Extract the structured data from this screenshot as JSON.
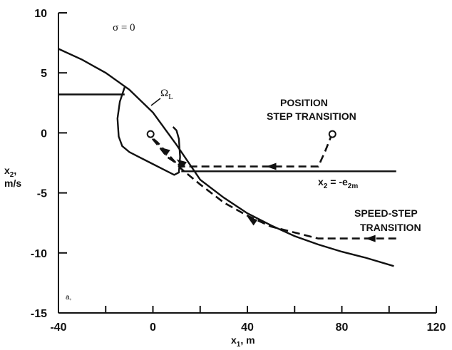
{
  "chart_data": {
    "type": "line",
    "xlabel": "x",
    "xlabel_sub": "1",
    "xlabel_unit": ", m",
    "ylabel_line1": "x",
    "ylabel_sub": "2",
    "ylabel_line1_tail": ",",
    "ylabel_line2": "m/s",
    "xlim": [
      -40,
      120
    ],
    "ylim": [
      -15,
      10
    ],
    "x_ticks": [
      -40,
      -20,
      0,
      20,
      40,
      60,
      80,
      100,
      120
    ],
    "x_tick_labels": [
      "-40",
      "",
      "0",
      "",
      "40",
      "",
      "80",
      "",
      "120"
    ],
    "y_ticks": [
      -15,
      -10,
      -5,
      0,
      5,
      10
    ],
    "y_tick_labels": [
      "-15",
      "-10",
      "-5",
      "0",
      "5",
      "10"
    ],
    "series": [
      {
        "key": "sigma_zero",
        "style": "solid",
        "x": [
          -40,
          -30,
          -20,
          -10,
          0,
          10,
          20,
          30,
          40,
          50,
          60,
          70,
          80,
          90,
          102
        ],
        "y": [
          7.0,
          6.1,
          5.0,
          3.6,
          1.7,
          -1.0,
          -3.9,
          -5.4,
          -6.7,
          -7.7,
          -8.6,
          -9.3,
          -9.9,
          -10.4,
          -11.1
        ]
      },
      {
        "key": "omega_L_boundary",
        "style": "solid",
        "x": [
          -12,
          -14,
          -15,
          -14.5,
          -13,
          -10,
          -6,
          -1,
          4,
          9,
          11,
          11.5,
          11,
          10,
          8.5
        ],
        "y": [
          3.8,
          2.6,
          1.2,
          -0.3,
          -1.1,
          -1.6,
          -2.0,
          -2.5,
          -3.0,
          -3.5,
          -3.3,
          -2.0,
          -0.5,
          0.2,
          0.5
        ]
      },
      {
        "key": "initial_plateau",
        "style": "solid",
        "x": [
          -40,
          -12
        ],
        "y": [
          3.2,
          3.2
        ]
      },
      {
        "key": "x2_equals_minus_e2m",
        "style": "solid",
        "x": [
          12,
          103
        ],
        "y": [
          -3.2,
          -3.2
        ]
      },
      {
        "key": "position_step_transition",
        "style": "dashed",
        "x": [
          76,
          73,
          70,
          40,
          12,
          6,
          2,
          -1
        ],
        "y": [
          0.0,
          -1.5,
          -2.8,
          -2.8,
          -2.8,
          -2.0,
          -1.0,
          -0.3
        ]
      },
      {
        "key": "speed_step_transition",
        "style": "dashed",
        "x": [
          103,
          70,
          50,
          40,
          30,
          20,
          12,
          6,
          2,
          -1
        ],
        "y": [
          -8.8,
          -8.8,
          -7.8,
          -6.9,
          -5.8,
          -4.3,
          -3.0,
          -1.7,
          -0.8,
          -0.3
        ]
      }
    ],
    "points": [
      {
        "key": "position_start",
        "x": 76,
        "y": -0.1
      },
      {
        "key": "origin_target",
        "x": -1,
        "y": -0.1
      }
    ],
    "arrows": [
      {
        "key": "arrow_position_path",
        "x": 48,
        "y": -2.8,
        "dir": "left"
      },
      {
        "key": "arrow_speed_path",
        "x": 90,
        "y": -8.8,
        "dir": "left"
      },
      {
        "key": "arrow_speed_curve",
        "x": 40,
        "y": -7.0,
        "dir": "up-left"
      },
      {
        "key": "arrow_to_target_1",
        "x": 3,
        "y": -1.2,
        "dir": "up-left"
      },
      {
        "key": "arrow_to_target_2",
        "x": 10,
        "y": -2.2,
        "dir": "up-left"
      }
    ],
    "annotations": {
      "sigma_label": "σ = 0",
      "omega_label": "Ω",
      "omega_sub": "L",
      "position_line1": "POSITION",
      "position_line2": "STEP TRANSITION",
      "speed_line1": "SPEED-STEP",
      "speed_line2": "TRANSITION",
      "e2m_label_main": "x",
      "e2m_sub1": "2",
      "e2m_mid": " = -e",
      "e2m_sub2": "2m",
      "corner_label": "a,"
    }
  }
}
